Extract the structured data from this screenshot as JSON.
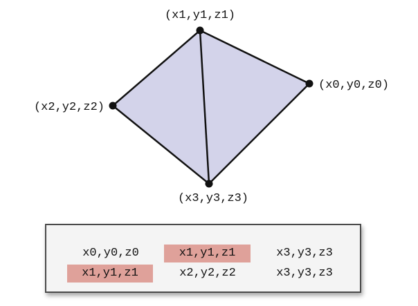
{
  "diagram": {
    "fill_color": "#d3d3ea",
    "edge_color": "#111111",
    "highlight_color": "#dfa19a",
    "vertices": [
      {
        "id": "v0",
        "label": "(x0,y0,z0)"
      },
      {
        "id": "v1",
        "label": "(x1,y1,z1)"
      },
      {
        "id": "v2",
        "label": "(x2,y2,z2)"
      },
      {
        "id": "v3",
        "label": "(x3,y3,z3)"
      }
    ],
    "triangles": [
      [
        "v0",
        "v1",
        "v3"
      ],
      [
        "v1",
        "v2",
        "v3"
      ]
    ]
  },
  "vertex_list": {
    "rows": [
      {
        "cells": [
          {
            "text": "x0,y0,z0",
            "highlight": false
          },
          {
            "text": "x1,y1,z1",
            "highlight": true
          },
          {
            "text": "x3,y3,z3",
            "highlight": false
          }
        ]
      },
      {
        "cells": [
          {
            "text": "x1,y1,z1",
            "highlight": true
          },
          {
            "text": "x2,y2,z2",
            "highlight": false
          },
          {
            "text": "x3,y3,z3",
            "highlight": false
          }
        ]
      }
    ]
  }
}
